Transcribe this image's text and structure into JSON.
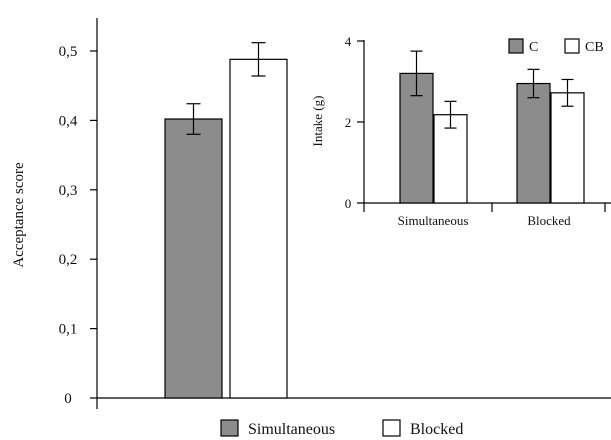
{
  "chart_data": [
    {
      "type": "bar",
      "xlabel": "",
      "ylabel": "Acceptance score",
      "ylim": [
        0,
        0.55
      ],
      "yticks": [
        "0",
        "0,1",
        "0,2",
        "0,3",
        "0,4",
        "0,5"
      ],
      "series": [
        {
          "name": "Simultaneous",
          "values": [
            0.402
          ],
          "error": [
            0.022
          ],
          "color": "#8c8c8c"
        },
        {
          "name": "Blocked",
          "values": [
            0.488
          ],
          "error": [
            0.024
          ],
          "color": "#ffffff"
        }
      ],
      "legend_position": "bottom"
    },
    {
      "type": "bar",
      "xlabel": "",
      "ylabel": "Intake (g)",
      "ylim": [
        0,
        4
      ],
      "yticks": [
        "0",
        "2",
        "4"
      ],
      "categories": [
        "Simultaneous",
        "Blocked"
      ],
      "series": [
        {
          "name": "C",
          "values": [
            3.2,
            2.95
          ],
          "error": [
            0.55,
            0.35
          ],
          "color": "#8c8c8c"
        },
        {
          "name": "CB",
          "values": [
            2.18,
            2.72
          ],
          "error": [
            0.33,
            0.33
          ],
          "color": "#ffffff"
        }
      ],
      "legend_position": "top-right"
    }
  ]
}
